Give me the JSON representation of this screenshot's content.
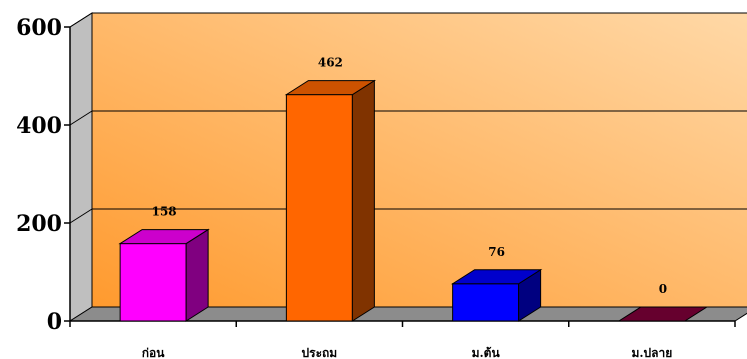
{
  "chart_data": {
    "type": "bar",
    "style": "3d-column",
    "categories": [
      "ก่อน",
      "ประถม",
      "ม.ต้น",
      "ม.ปลาย"
    ],
    "values": [
      158,
      462,
      76,
      0
    ],
    "data_labels": [
      "158",
      "462",
      "76",
      "0"
    ],
    "ylim": [
      0,
      600
    ],
    "yticks": [
      0,
      200,
      400,
      600
    ],
    "ytick_labels": [
      "0",
      "200",
      "400",
      "600"
    ],
    "grid": true,
    "legend": "none",
    "colors": {
      "bars": [
        "#ff00ff",
        "#ff6600",
        "#0000ff",
        "#800040"
      ],
      "bar_tops": [
        "#cc00cc",
        "#cc5200",
        "#0000cc",
        "#66002e"
      ],
      "bar_sides": [
        "#800080",
        "#803300",
        "#000080",
        "#400020"
      ],
      "wall_light": "#ffd9a8",
      "wall_dark": "#ff9a2e",
      "floor": "#8c8c8c",
      "side_wall": "#bfbfbf",
      "gridline": "#000000"
    }
  }
}
